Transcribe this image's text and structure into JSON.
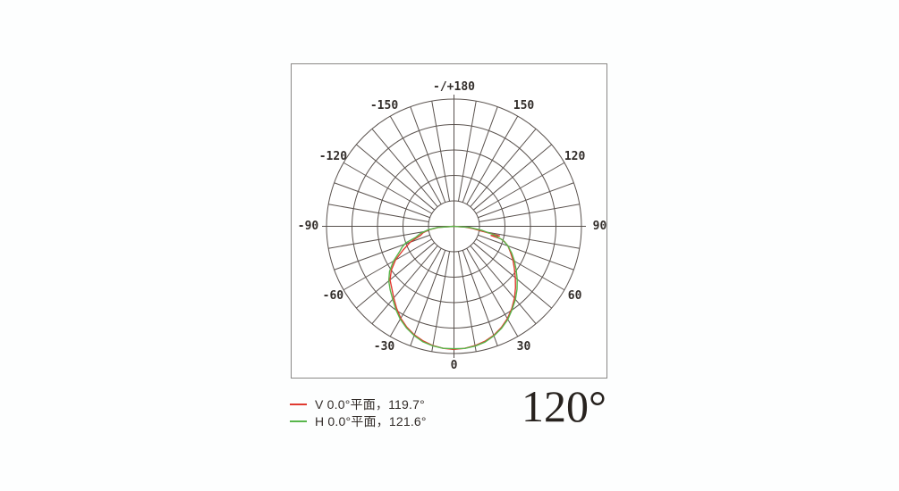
{
  "beam_angle_label": "120°",
  "legend": {
    "items": [
      {
        "label": "V 0.0°平面，119.7°",
        "color": "#e03a30",
        "series": "V"
      },
      {
        "label": "H 0.0°平面，121.6°",
        "color": "#58b64b",
        "series": "H"
      }
    ]
  },
  "colors": {
    "grid": "#5b534f",
    "axis": "#57504c",
    "label": "#332e2b",
    "v_curve": "#e03a30",
    "h_curve": "#58b64b",
    "frame_border": "#8a8886",
    "background": "#ffffff"
  },
  "chart_data": {
    "type": "polar",
    "subtype": "luminous-intensity-distribution",
    "orientation": "0° at bottom (nadir), positive angles on right, ±180 at top",
    "grid": {
      "rings": 5,
      "spoke_step_deg": 10,
      "label_step_deg": 30,
      "hub_radius_fraction": 0.2
    },
    "angle_labels": [
      {
        "angle": 0,
        "text": "0"
      },
      {
        "angle": 30,
        "text": "30"
      },
      {
        "angle": 60,
        "text": "60"
      },
      {
        "angle": 90,
        "text": "90"
      },
      {
        "angle": 120,
        "text": "120"
      },
      {
        "angle": 150,
        "text": "150"
      },
      {
        "angle": 180,
        "text": "-/+180"
      },
      {
        "angle": -150,
        "text": "-150"
      },
      {
        "angle": -120,
        "text": "-120"
      },
      {
        "angle": -90,
        "text": "-90"
      },
      {
        "angle": -60,
        "text": "-60"
      },
      {
        "angle": -30,
        "text": "-30"
      }
    ],
    "value_meaning": "relative luminous intensity, as fraction of outer grid radius",
    "series": [
      {
        "name": "V 0.0°平面",
        "beam_angle_deg": 119.7,
        "color": "#e03a30",
        "points": [
          [
            -90,
            0
          ],
          [
            -86,
            0.12
          ],
          [
            -82,
            0.2
          ],
          [
            -78,
            0.25
          ],
          [
            -75,
            0.27
          ],
          [
            -72,
            0.32
          ],
          [
            -70,
            0.365
          ],
          [
            -65,
            0.44
          ],
          [
            -60,
            0.53
          ],
          [
            -55,
            0.6
          ],
          [
            -50,
            0.655
          ],
          [
            -45,
            0.69
          ],
          [
            -40,
            0.735
          ],
          [
            -35,
            0.785
          ],
          [
            -30,
            0.835
          ],
          [
            -25,
            0.875
          ],
          [
            -20,
            0.908
          ],
          [
            -15,
            0.933
          ],
          [
            -10,
            0.952
          ],
          [
            -5,
            0.963
          ],
          [
            0,
            0.968
          ],
          [
            5,
            0.963
          ],
          [
            10,
            0.952
          ],
          [
            15,
            0.936
          ],
          [
            20,
            0.912
          ],
          [
            25,
            0.878
          ],
          [
            30,
            0.838
          ],
          [
            35,
            0.79
          ],
          [
            40,
            0.738
          ],
          [
            45,
            0.683
          ],
          [
            50,
            0.628
          ],
          [
            55,
            0.578
          ],
          [
            60,
            0.535
          ],
          [
            65,
            0.49
          ],
          [
            70,
            0.45
          ],
          [
            73,
            0.415
          ],
          [
            75,
            0.38
          ],
          [
            76,
            0.3
          ],
          [
            78,
            0.365
          ],
          [
            80,
            0.23
          ],
          [
            83,
            0.15
          ],
          [
            86,
            0.09
          ],
          [
            90,
            0
          ]
        ]
      },
      {
        "name": "H 0.0°平面",
        "beam_angle_deg": 121.6,
        "color": "#58b64b",
        "points": [
          [
            -90,
            0
          ],
          [
            -86,
            0.13
          ],
          [
            -82,
            0.21
          ],
          [
            -78,
            0.27
          ],
          [
            -74,
            0.31
          ],
          [
            -71,
            0.4
          ],
          [
            -68,
            0.44
          ],
          [
            -65,
            0.47
          ],
          [
            -60,
            0.548
          ],
          [
            -55,
            0.617
          ],
          [
            -50,
            0.668
          ],
          [
            -45,
            0.708
          ],
          [
            -40,
            0.748
          ],
          [
            -35,
            0.796
          ],
          [
            -30,
            0.843
          ],
          [
            -25,
            0.882
          ],
          [
            -20,
            0.914
          ],
          [
            -15,
            0.94
          ],
          [
            -10,
            0.955
          ],
          [
            -5,
            0.963
          ],
          [
            0,
            0.962
          ],
          [
            5,
            0.964
          ],
          [
            10,
            0.956
          ],
          [
            15,
            0.942
          ],
          [
            20,
            0.916
          ],
          [
            25,
            0.884
          ],
          [
            30,
            0.845
          ],
          [
            35,
            0.797
          ],
          [
            40,
            0.75
          ],
          [
            45,
            0.7
          ],
          [
            50,
            0.648
          ],
          [
            55,
            0.595
          ],
          [
            60,
            0.548
          ],
          [
            65,
            0.5
          ],
          [
            70,
            0.45
          ],
          [
            74,
            0.4
          ],
          [
            78,
            0.32
          ],
          [
            82,
            0.22
          ],
          [
            86,
            0.12
          ],
          [
            90,
            0
          ]
        ]
      }
    ]
  }
}
